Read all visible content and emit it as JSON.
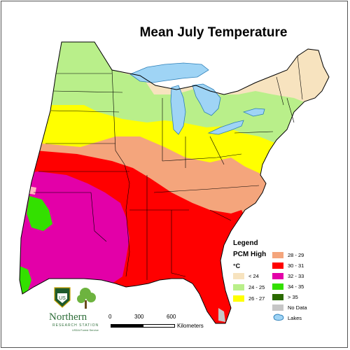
{
  "title": "Mean July Temperature",
  "legend": {
    "heading": "Legend",
    "scenario": "PCM High",
    "unit": "°C",
    "classes": [
      {
        "label": "< 24",
        "color": "#f7e3bf"
      },
      {
        "label": "24 - 25",
        "color": "#b9ef8a"
      },
      {
        "label": "26 - 27",
        "color": "#ffff00"
      },
      {
        "label": "28 - 29",
        "color": "#f4a57c"
      },
      {
        "label": "30 - 31",
        "color": "#ff0000"
      },
      {
        "label": "32 - 33",
        "color": "#e300a8"
      },
      {
        "label": "34 - 35",
        "color": "#33e000"
      },
      {
        "label": "> 35",
        "color": "#2a6a00"
      },
      {
        "label": "No Data",
        "color": "#c6c6c6"
      }
    ],
    "lakes_label": "Lakes",
    "lakes_color": "#9fd4f5"
  },
  "scale": {
    "ticks": [
      "0",
      "300",
      "600"
    ],
    "unit": "Kilometers"
  },
  "logo": {
    "name": "Northern",
    "subtitle": "RESEARCH STATION",
    "agency": "USDA Forest Service",
    "shield_text": "US"
  }
}
